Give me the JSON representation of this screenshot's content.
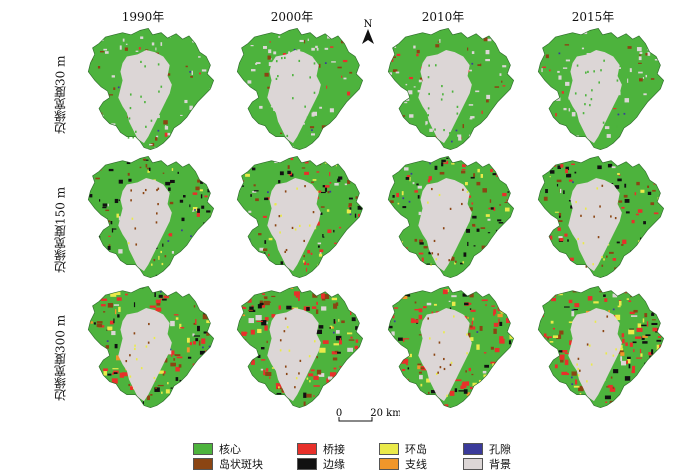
{
  "columns": [
    "1990年",
    "2000年",
    "2010年",
    "2015年"
  ],
  "rows": [
    "边缘宽度30 m",
    "边缘宽度150 m",
    "边缘宽度300 m"
  ],
  "north_label": "N",
  "scale": {
    "start": "0",
    "end": "20 km"
  },
  "legend": [
    {
      "label": "核心",
      "color": "#4db33d"
    },
    {
      "label": "岛状斑块",
      "color": "#8b4513"
    },
    {
      "label": "桥接",
      "color": "#e8302a"
    },
    {
      "label": "边缘",
      "color": "#111111"
    },
    {
      "label": "环岛",
      "color": "#eaea4a"
    },
    {
      "label": "支线",
      "color": "#f0962a"
    },
    {
      "label": "孔隙",
      "color": "#3a3a9a"
    },
    {
      "label": "背景",
      "color": "#dcd6d6"
    }
  ]
}
